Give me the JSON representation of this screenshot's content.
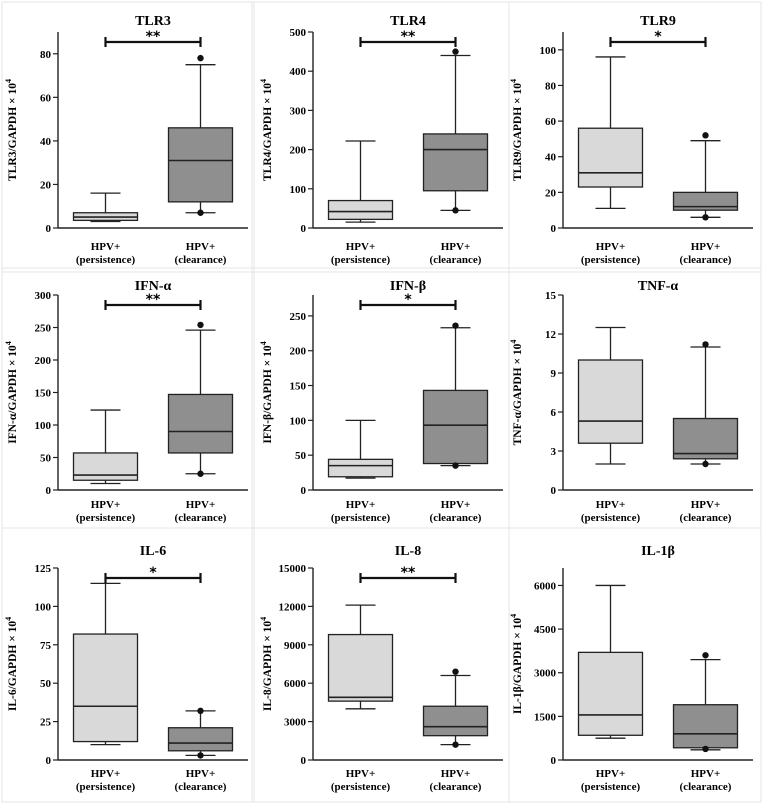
{
  "chart_data": [
    {
      "type": "box",
      "title": "TLR3",
      "ylabel": "TLR3/GAPDH × 10",
      "ylabel_exp": "4",
      "ylim": [
        0,
        90
      ],
      "yticks": [
        0,
        20,
        40,
        60,
        80
      ],
      "categories": [
        "HPV+",
        "HPV+"
      ],
      "category_sub": [
        "(persistence)",
        "(clearance)"
      ],
      "boxes": [
        {
          "min": 3,
          "q1": 3.5,
          "median": 5,
          "q3": 7,
          "max": 16
        },
        {
          "min": 7,
          "q1": 12,
          "median": 31,
          "q3": 46,
          "max": 75,
          "outliers": [
            7,
            78
          ]
        }
      ],
      "significance": "**"
    },
    {
      "type": "box",
      "title": "TLR4",
      "ylabel": "TLR4/GAPDH × 10",
      "ylabel_exp": "4",
      "ylim": [
        0,
        500
      ],
      "yticks": [
        0,
        100,
        200,
        300,
        400,
        500
      ],
      "categories": [
        "HPV+",
        "HPV+"
      ],
      "category_sub": [
        "(persistence)",
        "(clearance)"
      ],
      "boxes": [
        {
          "min": 15,
          "q1": 22,
          "median": 42,
          "q3": 70,
          "max": 222
        },
        {
          "min": 45,
          "q1": 95,
          "median": 200,
          "q3": 240,
          "max": 440,
          "outliers": [
            45,
            450
          ]
        }
      ],
      "significance": "**"
    },
    {
      "type": "box",
      "title": "TLR9",
      "ylabel": "TLR9/GAPDH × 10",
      "ylabel_exp": "4",
      "ylim": [
        0,
        110
      ],
      "yticks": [
        0,
        20,
        40,
        60,
        80,
        100
      ],
      "categories": [
        "HPV+",
        "HPV+"
      ],
      "category_sub": [
        "(persistence)",
        "(clearance)"
      ],
      "boxes": [
        {
          "min": 11,
          "q1": 23,
          "median": 31,
          "q3": 56,
          "max": 96
        },
        {
          "min": 6,
          "q1": 10,
          "median": 12,
          "q3": 20,
          "max": 49,
          "outliers": [
            6,
            52
          ]
        }
      ],
      "significance": "*"
    },
    {
      "type": "box",
      "title": "IFN-α",
      "ylabel": "IFN-α/GAPDH × 10",
      "ylabel_exp": "4",
      "ylim": [
        0,
        300
      ],
      "yticks": [
        0,
        50,
        100,
        150,
        200,
        250,
        300
      ],
      "categories": [
        "HPV+",
        "HPV+"
      ],
      "category_sub": [
        "(persistence)",
        "(clearance)"
      ],
      "boxes": [
        {
          "min": 10,
          "q1": 15,
          "median": 23,
          "q3": 57,
          "max": 123
        },
        {
          "min": 25,
          "q1": 57,
          "median": 90,
          "q3": 147,
          "max": 246,
          "outliers": [
            25,
            254
          ]
        }
      ],
      "significance": "**"
    },
    {
      "type": "box",
      "title": "IFN-β",
      "ylabel": "IFN-β/GAPDH × 10",
      "ylabel_exp": "4",
      "ylim": [
        0,
        280
      ],
      "yticks": [
        0,
        50,
        100,
        150,
        200,
        250
      ],
      "categories": [
        "HPV+",
        "HPV+"
      ],
      "category_sub": [
        "(persistence)",
        "(clearance)"
      ],
      "boxes": [
        {
          "min": 17,
          "q1": 19,
          "median": 35,
          "q3": 44,
          "max": 100
        },
        {
          "min": 35,
          "q1": 38,
          "median": 93,
          "q3": 143,
          "max": 233,
          "outliers": [
            35,
            236
          ]
        }
      ],
      "significance": "*"
    },
    {
      "type": "box",
      "title": "TNF-α",
      "ylabel": "TNF-α/GAPDH × 10",
      "ylabel_exp": "4",
      "ylim": [
        0,
        15
      ],
      "yticks": [
        0,
        3,
        6,
        9,
        12,
        15
      ],
      "categories": [
        "HPV+",
        "HPV+"
      ],
      "category_sub": [
        "(persistence)",
        "(clearance)"
      ],
      "boxes": [
        {
          "min": 2,
          "q1": 3.6,
          "median": 5.3,
          "q3": 10,
          "max": 12.5
        },
        {
          "min": 2,
          "q1": 2.4,
          "median": 2.8,
          "q3": 5.5,
          "max": 11,
          "outliers": [
            2,
            11.2
          ]
        }
      ],
      "significance": ""
    },
    {
      "type": "box",
      "title": "IL-6",
      "ylabel": "IL-6/GAPDH × 10",
      "ylabel_exp": "4",
      "ylim": [
        0,
        125
      ],
      "yticks": [
        0,
        25,
        50,
        75,
        100,
        125
      ],
      "yticklabels": [
        "0",
        "25",
        "50",
        "75",
        "100",
        "125"
      ],
      "categories": [
        "HPV+",
        "HPV+"
      ],
      "category_sub": [
        "(persistence)",
        "(clearance)"
      ],
      "boxes": [
        {
          "min": 10,
          "q1": 12,
          "median": 35,
          "q3": 82,
          "max": 115
        },
        {
          "min": 3,
          "q1": 6,
          "median": 11,
          "q3": 21,
          "max": 32,
          "outliers": [
            3,
            32
          ]
        }
      ],
      "significance": "*"
    },
    {
      "type": "box",
      "title": "IL-8",
      "ylabel": "IL-8/GAPDH × 10",
      "ylabel_exp": "4",
      "ylim": [
        0,
        15000
      ],
      "yticks": [
        0,
        3000,
        6000,
        9000,
        12000,
        15000
      ],
      "categories": [
        "HPV+",
        "HPV+"
      ],
      "category_sub": [
        "(persistence)",
        "(clearance)"
      ],
      "boxes": [
        {
          "min": 4000,
          "q1": 4600,
          "median": 4900,
          "q3": 9800,
          "max": 12100
        },
        {
          "min": 1200,
          "q1": 1900,
          "median": 2600,
          "q3": 4200,
          "max": 6600,
          "outliers": [
            1200,
            6900
          ]
        }
      ],
      "significance": "**"
    },
    {
      "type": "box",
      "title": "IL-1β",
      "ylabel": "IL-1β/GAPDH × 10",
      "ylabel_exp": "4",
      "ylim": [
        0,
        6600
      ],
      "yticks": [
        0,
        1500,
        3000,
        4500,
        6000
      ],
      "categories": [
        "HPV+",
        "HPV+"
      ],
      "category_sub": [
        "(persistence)",
        "(clearance)"
      ],
      "boxes": [
        {
          "min": 750,
          "q1": 850,
          "median": 1550,
          "q3": 3700,
          "max": 6000
        },
        {
          "min": 350,
          "q1": 420,
          "median": 900,
          "q3": 1900,
          "max": 3450,
          "outliers": [
            380,
            3600
          ]
        }
      ],
      "significance": ""
    }
  ],
  "colors": {
    "persistence": "#d9d9d9",
    "clearance": "#8f8f8f",
    "axis": "#222222"
  }
}
